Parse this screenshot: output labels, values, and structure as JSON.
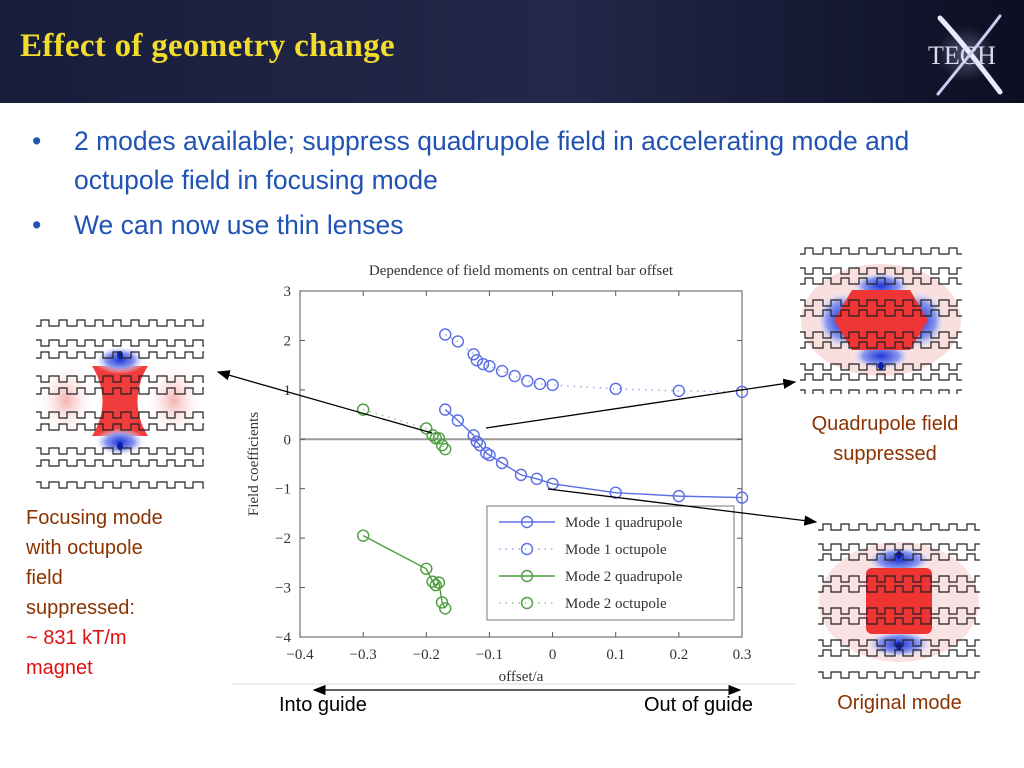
{
  "slide": {
    "title": "Effect of geometry change",
    "logo_text": "TECH",
    "bullets": [
      "2 modes available; suppress quadrupole field in accelerating mode and octupole field in focusing mode",
      "We can now use thin lenses"
    ],
    "captions": {
      "focus_lines": [
        "Focusing mode",
        "with octupole",
        "field",
        "suppressed:"
      ],
      "focus_red_lines": [
        "~ 831 kT/m",
        "magnet"
      ],
      "quad_lines": [
        "Quadrupole field",
        "suppressed"
      ],
      "original": "Original mode"
    },
    "guide": {
      "into": "Into guide",
      "out": "Out of guide"
    },
    "colors": {
      "title": "#f2dc2b",
      "bullet": "#2053b3",
      "caption": "#8a3300",
      "highlight": "#e01010"
    }
  },
  "chart_data": {
    "type": "line",
    "title": "Dependence of field moments on central bar offset",
    "xlabel": "offset/a",
    "ylabel": "Field coefficients",
    "xlim": [
      -0.4,
      0.3
    ],
    "ylim": [
      -4,
      3
    ],
    "xticks": [
      -0.4,
      -0.3,
      -0.2,
      -0.1,
      0,
      0.1,
      0.2,
      0.3
    ],
    "xtick_labels": [
      "−0.4",
      "−0.3",
      "−0.2",
      "−0.1",
      "0",
      "0.1",
      "0.2",
      "0.3"
    ],
    "yticks": [
      3,
      2,
      1,
      0,
      -1,
      -2,
      -3,
      -4
    ],
    "ytick_labels": [
      "3",
      "2",
      "1",
      "0",
      "−1",
      "−2",
      "−3",
      "−4"
    ],
    "grid": false,
    "legend_position": "lower-right",
    "series": [
      {
        "name": "Mode 1 quadrupole",
        "color": "#5a6ee6",
        "line": "solid",
        "x": [
          -0.17,
          -0.15,
          -0.125,
          -0.12,
          -0.115,
          -0.105,
          -0.1,
          -0.08,
          -0.05,
          -0.025,
          0,
          0.1,
          0.2,
          0.3
        ],
        "y": [
          0.6,
          0.38,
          0.08,
          -0.05,
          -0.12,
          -0.28,
          -0.32,
          -0.48,
          -0.72,
          -0.8,
          -0.9,
          -1.08,
          -1.15,
          -1.18
        ]
      },
      {
        "name": "Mode 1 octupole",
        "color": "#5a6ee6",
        "line": "dotted",
        "x": [
          -0.17,
          -0.15,
          -0.125,
          -0.12,
          -0.11,
          -0.1,
          -0.08,
          -0.06,
          -0.04,
          -0.02,
          0,
          0.1,
          0.2,
          0.3
        ],
        "y": [
          2.12,
          1.98,
          1.72,
          1.6,
          1.52,
          1.48,
          1.38,
          1.28,
          1.18,
          1.12,
          1.1,
          1.02,
          0.98,
          0.96
        ]
      },
      {
        "name": "Mode 2 quadrupole",
        "color": "#4c9e3e",
        "line": "solid",
        "x": [
          -0.3,
          -0.2,
          -0.19,
          -0.185,
          -0.18,
          -0.175,
          -0.17
        ],
        "y": [
          -1.95,
          -2.62,
          -2.88,
          -2.95,
          -2.9,
          -3.3,
          -3.42
        ]
      },
      {
        "name": "Mode 2 octupole",
        "color": "#4c9e3e",
        "line": "dotted",
        "x": [
          -0.3,
          -0.2,
          -0.19,
          -0.185,
          -0.18,
          -0.175,
          -0.17
        ],
        "y": [
          0.6,
          0.22,
          0.08,
          0.02,
          0.02,
          -0.12,
          -0.2
        ]
      }
    ]
  }
}
